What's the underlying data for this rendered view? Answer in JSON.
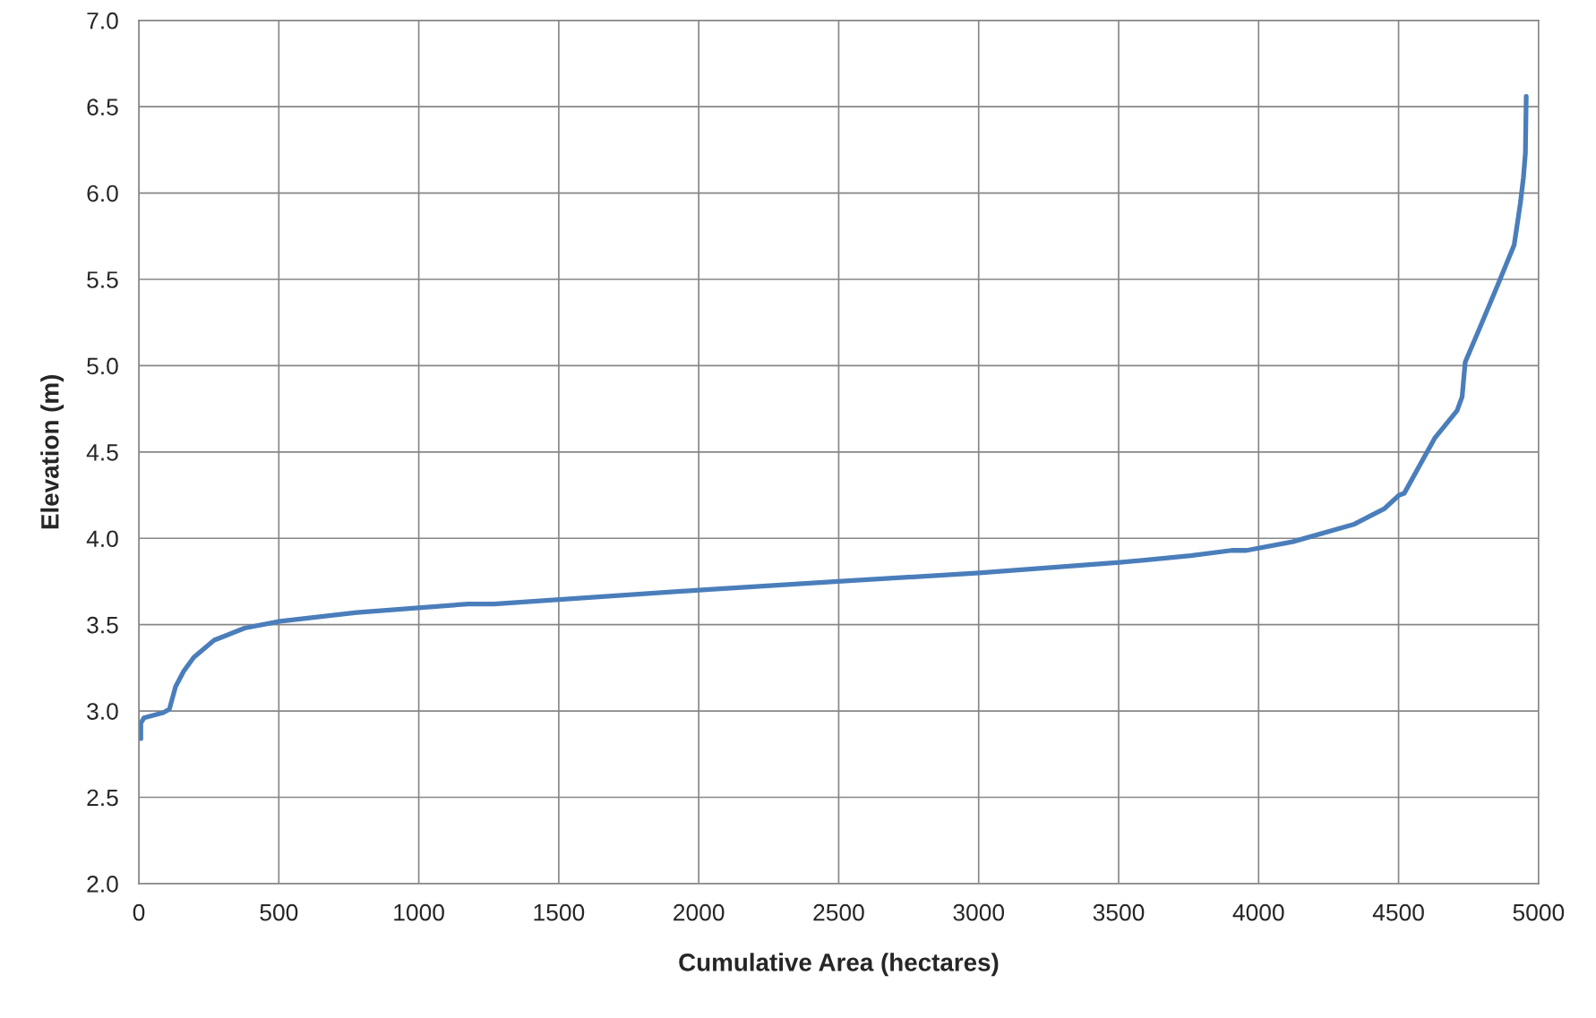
{
  "chart_data": {
    "type": "line",
    "xlabel": "Cumulative Area (hectares)",
    "ylabel": "Elevation (m)",
    "series": [
      {
        "color": "#4a7ebb",
        "x": [
          7,
          7,
          18,
          87,
          109,
          131,
          160,
          196,
          269,
          378,
          505,
          778,
          1177,
          1268,
          1999,
          2497,
          3002,
          3503,
          3757,
          3903,
          3957,
          4121,
          4339,
          4448,
          4502,
          4520,
          4629,
          4709,
          4727,
          4738,
          4793,
          4855,
          4913,
          4935,
          4946,
          4953,
          4956
        ],
        "values": [
          2.84,
          2.93,
          2.96,
          2.99,
          3.01,
          3.14,
          3.23,
          3.31,
          3.41,
          3.48,
          3.52,
          3.57,
          3.62,
          3.62,
          3.7,
          3.75,
          3.8,
          3.86,
          3.9,
          3.93,
          3.93,
          3.98,
          4.08,
          4.17,
          4.25,
          4.26,
          4.58,
          4.74,
          4.82,
          5.02,
          5.23,
          5.47,
          5.7,
          5.94,
          6.09,
          6.23,
          6.56
        ]
      }
    ],
    "xlim": [
      0,
      5000
    ],
    "xticks": [
      0,
      500,
      1000,
      1500,
      2000,
      2500,
      3000,
      3500,
      4000,
      4500,
      5000
    ],
    "ylim": [
      2.0,
      7.0
    ],
    "yticks": [
      {
        "value": 2.0,
        "label": "2.0"
      },
      {
        "value": 2.5,
        "label": "2.5"
      },
      {
        "value": 3.0,
        "label": "3.0"
      },
      {
        "value": 3.5,
        "label": "3.5"
      },
      {
        "value": 4.0,
        "label": "4.0"
      },
      {
        "value": 4.5,
        "label": "4.5"
      },
      {
        "value": 5.0,
        "label": "5.0"
      },
      {
        "value": 5.5,
        "label": "5.5"
      },
      {
        "value": 6.0,
        "label": "6.0"
      },
      {
        "value": 6.5,
        "label": "6.5"
      },
      {
        "value": 7.0,
        "label": "7.0"
      }
    ],
    "grid": true,
    "marker": "none",
    "line_style": "solid"
  }
}
